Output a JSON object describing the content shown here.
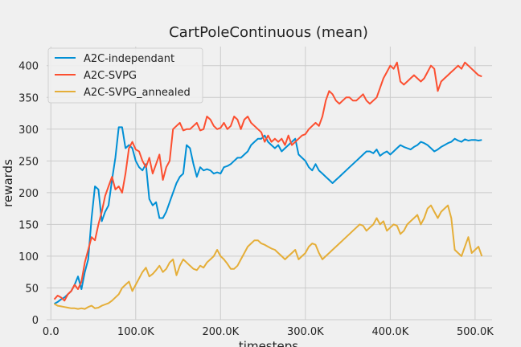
{
  "chart_data": {
    "type": "line",
    "title": "CartPoleContinuous (mean)",
    "xlabel": "timesteps",
    "ylabel": "rewards",
    "xlim": [
      -5000,
      520000
    ],
    "ylim": [
      0,
      430
    ],
    "xticks": [
      0,
      100000,
      200000,
      300000,
      400000,
      500000
    ],
    "xtick_labels": [
      "0.0",
      "100.0K",
      "200.0K",
      "300.0K",
      "400.0K",
      "500.0K"
    ],
    "yticks": [
      0,
      50,
      100,
      150,
      200,
      250,
      300,
      350,
      400
    ],
    "ytick_labels": [
      "0",
      "50",
      "100",
      "150",
      "200",
      "250",
      "300",
      "350",
      "400"
    ],
    "grid": true,
    "legend_position": "top-left",
    "series": [
      {
        "name": "A2C-independant",
        "color": "#008fd5",
        "x": [
          4000,
          8000,
          12000,
          16000,
          20000,
          24000,
          28000,
          32000,
          36000,
          40000,
          44000,
          48000,
          52000,
          56000,
          60000,
          64000,
          68000,
          72000,
          76000,
          80000,
          84000,
          88000,
          92000,
          96000,
          100000,
          104000,
          108000,
          112000,
          116000,
          120000,
          124000,
          128000,
          132000,
          136000,
          140000,
          144000,
          148000,
          152000,
          156000,
          160000,
          164000,
          168000,
          172000,
          176000,
          180000,
          184000,
          188000,
          192000,
          196000,
          200000,
          204000,
          208000,
          212000,
          216000,
          220000,
          224000,
          228000,
          232000,
          236000,
          240000,
          244000,
          248000,
          252000,
          256000,
          260000,
          264000,
          268000,
          272000,
          276000,
          280000,
          284000,
          288000,
          292000,
          296000,
          300000,
          304000,
          308000,
          312000,
          316000,
          320000,
          324000,
          328000,
          332000,
          336000,
          340000,
          344000,
          348000,
          352000,
          356000,
          360000,
          364000,
          368000,
          372000,
          376000,
          380000,
          384000,
          388000,
          392000,
          396000,
          400000,
          404000,
          408000,
          412000,
          416000,
          420000,
          424000,
          428000,
          432000,
          436000,
          440000,
          444000,
          448000,
          452000,
          456000,
          460000,
          464000,
          468000,
          472000,
          476000,
          480000,
          484000,
          488000,
          492000,
          496000,
          500000,
          504000,
          508000
        ],
        "values": [
          25,
          28,
          32,
          35,
          40,
          45,
          55,
          68,
          48,
          75,
          95,
          160,
          210,
          205,
          155,
          170,
          180,
          220,
          255,
          303,
          303,
          270,
          275,
          270,
          250,
          240,
          235,
          245,
          190,
          180,
          185,
          160,
          160,
          170,
          185,
          200,
          215,
          225,
          230,
          275,
          270,
          245,
          225,
          240,
          235,
          237,
          235,
          230,
          232,
          230,
          240,
          242,
          245,
          250,
          255,
          255,
          260,
          265,
          275,
          280,
          285,
          285,
          290,
          280,
          275,
          270,
          275,
          265,
          270,
          275,
          280,
          285,
          260,
          255,
          250,
          240,
          235,
          245,
          235,
          230,
          225,
          220,
          215,
          220,
          225,
          230,
          235,
          240,
          245,
          250,
          255,
          260,
          265,
          265,
          262,
          268,
          258,
          262,
          265,
          260,
          265,
          270,
          275,
          272,
          270,
          268,
          272,
          275,
          280,
          278,
          275,
          270,
          265,
          268,
          272,
          275,
          278,
          280,
          285,
          282,
          280,
          284,
          282,
          283,
          283,
          282,
          283
        ]
      },
      {
        "name": "A2C-SVPG",
        "color": "#fc4f30",
        "x": [
          4000,
          8000,
          12000,
          16000,
          20000,
          24000,
          28000,
          32000,
          36000,
          40000,
          44000,
          48000,
          52000,
          56000,
          60000,
          64000,
          68000,
          72000,
          76000,
          80000,
          84000,
          88000,
          92000,
          96000,
          100000,
          104000,
          108000,
          112000,
          116000,
          120000,
          124000,
          128000,
          132000,
          136000,
          140000,
          144000,
          148000,
          152000,
          156000,
          160000,
          164000,
          168000,
          172000,
          176000,
          180000,
          184000,
          188000,
          192000,
          196000,
          200000,
          204000,
          208000,
          212000,
          216000,
          220000,
          224000,
          228000,
          232000,
          236000,
          240000,
          244000,
          248000,
          252000,
          256000,
          260000,
          264000,
          268000,
          272000,
          276000,
          280000,
          284000,
          288000,
          292000,
          296000,
          300000,
          304000,
          308000,
          312000,
          316000,
          320000,
          324000,
          328000,
          332000,
          336000,
          340000,
          344000,
          348000,
          352000,
          356000,
          360000,
          364000,
          368000,
          372000,
          376000,
          380000,
          384000,
          388000,
          392000,
          396000,
          400000,
          404000,
          408000,
          412000,
          416000,
          420000,
          424000,
          428000,
          432000,
          436000,
          440000,
          444000,
          448000,
          452000,
          456000,
          460000,
          464000,
          468000,
          472000,
          476000,
          480000,
          484000,
          488000,
          492000,
          496000,
          500000,
          504000,
          508000
        ],
        "values": [
          32,
          38,
          35,
          30,
          40,
          45,
          55,
          48,
          60,
          90,
          110,
          130,
          125,
          150,
          170,
          195,
          210,
          225,
          205,
          210,
          200,
          230,
          270,
          280,
          268,
          265,
          250,
          240,
          255,
          230,
          245,
          260,
          220,
          240,
          250,
          300,
          305,
          310,
          298,
          300,
          300,
          305,
          310,
          298,
          300,
          320,
          315,
          305,
          300,
          302,
          310,
          300,
          305,
          320,
          315,
          300,
          315,
          320,
          310,
          305,
          300,
          295,
          280,
          290,
          280,
          285,
          280,
          285,
          275,
          290,
          275,
          280,
          285,
          290,
          292,
          300,
          305,
          310,
          305,
          320,
          345,
          360,
          355,
          345,
          340,
          345,
          350,
          350,
          345,
          345,
          350,
          355,
          345,
          340,
          345,
          350,
          365,
          380,
          390,
          400,
          395,
          405,
          375,
          370,
          375,
          380,
          385,
          380,
          375,
          380,
          390,
          400,
          395,
          360,
          375,
          380,
          385,
          390,
          395,
          400,
          395,
          405,
          400,
          395,
          390,
          385,
          383
        ]
      },
      {
        "name": "A2C-SVPG_annealed",
        "color": "#e5ae38",
        "x": [
          4000,
          8000,
          12000,
          16000,
          20000,
          24000,
          28000,
          32000,
          36000,
          40000,
          44000,
          48000,
          52000,
          56000,
          60000,
          64000,
          68000,
          72000,
          76000,
          80000,
          84000,
          88000,
          92000,
          96000,
          100000,
          104000,
          108000,
          112000,
          116000,
          120000,
          124000,
          128000,
          132000,
          136000,
          140000,
          144000,
          148000,
          152000,
          156000,
          160000,
          164000,
          168000,
          172000,
          176000,
          180000,
          184000,
          188000,
          192000,
          196000,
          200000,
          204000,
          208000,
          212000,
          216000,
          220000,
          224000,
          228000,
          232000,
          236000,
          240000,
          244000,
          248000,
          252000,
          256000,
          260000,
          264000,
          268000,
          272000,
          276000,
          280000,
          284000,
          288000,
          292000,
          296000,
          300000,
          304000,
          308000,
          312000,
          316000,
          320000,
          324000,
          328000,
          332000,
          336000,
          340000,
          344000,
          348000,
          352000,
          356000,
          360000,
          364000,
          368000,
          372000,
          376000,
          380000,
          384000,
          388000,
          392000,
          396000,
          400000,
          404000,
          408000,
          412000,
          416000,
          420000,
          424000,
          428000,
          432000,
          436000,
          440000,
          444000,
          448000,
          452000,
          456000,
          460000,
          464000,
          468000,
          472000,
          476000,
          480000,
          484000,
          488000,
          492000,
          496000,
          500000,
          504000,
          508000
        ],
        "values": [
          25,
          22,
          21,
          20,
          19,
          18,
          18,
          17,
          18,
          17,
          20,
          22,
          18,
          19,
          22,
          24,
          26,
          30,
          35,
          40,
          50,
          55,
          60,
          45,
          55,
          65,
          75,
          82,
          68,
          72,
          78,
          85,
          75,
          80,
          90,
          95,
          70,
          85,
          95,
          90,
          85,
          80,
          78,
          85,
          82,
          90,
          95,
          100,
          110,
          100,
          95,
          88,
          80,
          80,
          85,
          95,
          105,
          115,
          120,
          125,
          125,
          120,
          118,
          115,
          112,
          110,
          105,
          100,
          95,
          100,
          105,
          110,
          95,
          100,
          105,
          115,
          120,
          118,
          105,
          95,
          100,
          105,
          110,
          115,
          120,
          125,
          130,
          135,
          140,
          145,
          150,
          148,
          140,
          145,
          150,
          160,
          150,
          155,
          140,
          145,
          150,
          148,
          135,
          140,
          150,
          155,
          160,
          165,
          150,
          160,
          175,
          180,
          170,
          160,
          170,
          175,
          180,
          160,
          110,
          105,
          100,
          115,
          130,
          105,
          110,
          115,
          100
        ]
      }
    ]
  }
}
